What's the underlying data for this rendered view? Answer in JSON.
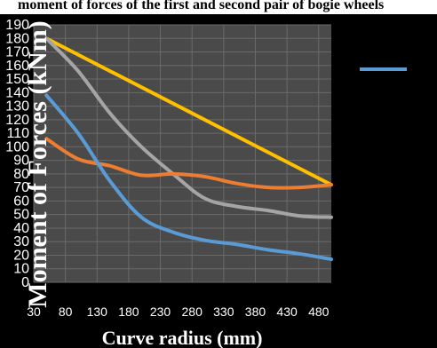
{
  "title": "moment of forces of the first and second pair of bogie wheels",
  "chart_data": {
    "type": "line",
    "xlabel": "Curve radius (mm)",
    "ylabel": "Moment of Forces (kNm)",
    "ylim": [
      0,
      190
    ],
    "xlim": [
      30,
      500
    ],
    "x_ticks": [
      "30",
      "80",
      "130",
      "180",
      "230",
      "280",
      "330",
      "380",
      "430",
      "480"
    ],
    "y_ticks": [
      "0",
      "10",
      "20",
      "30",
      "40",
      "50",
      "60",
      "70",
      "80",
      "90",
      "100",
      "110",
      "120",
      "130",
      "140",
      "150",
      "160",
      "170",
      "180",
      "190"
    ],
    "grid": true,
    "legend": "right",
    "series": [
      {
        "color": "#FFC000",
        "x": [
          50,
          500
        ],
        "y": [
          180,
          72
        ]
      },
      {
        "color": "#A5A5A5",
        "x": [
          50,
          100,
          150,
          200,
          250,
          300,
          350,
          400,
          450,
          500
        ],
        "y": [
          180,
          156,
          125,
          100,
          80,
          62,
          56,
          53,
          49,
          48
        ]
      },
      {
        "color": "#ED7D31",
        "x": [
          50,
          100,
          150,
          200,
          250,
          300,
          350,
          400,
          450,
          500
        ],
        "y": [
          106,
          91,
          86,
          79,
          80,
          78,
          73,
          70,
          70,
          72
        ]
      },
      {
        "color": "#5B9BD5",
        "x": [
          50,
          100,
          150,
          200,
          250,
          300,
          350,
          400,
          450,
          500
        ],
        "y": [
          138,
          110,
          75,
          48,
          37,
          31,
          28,
          24,
          21,
          17
        ]
      }
    ],
    "legend_entries": [
      {
        "color": "#5B9BD5"
      }
    ]
  }
}
